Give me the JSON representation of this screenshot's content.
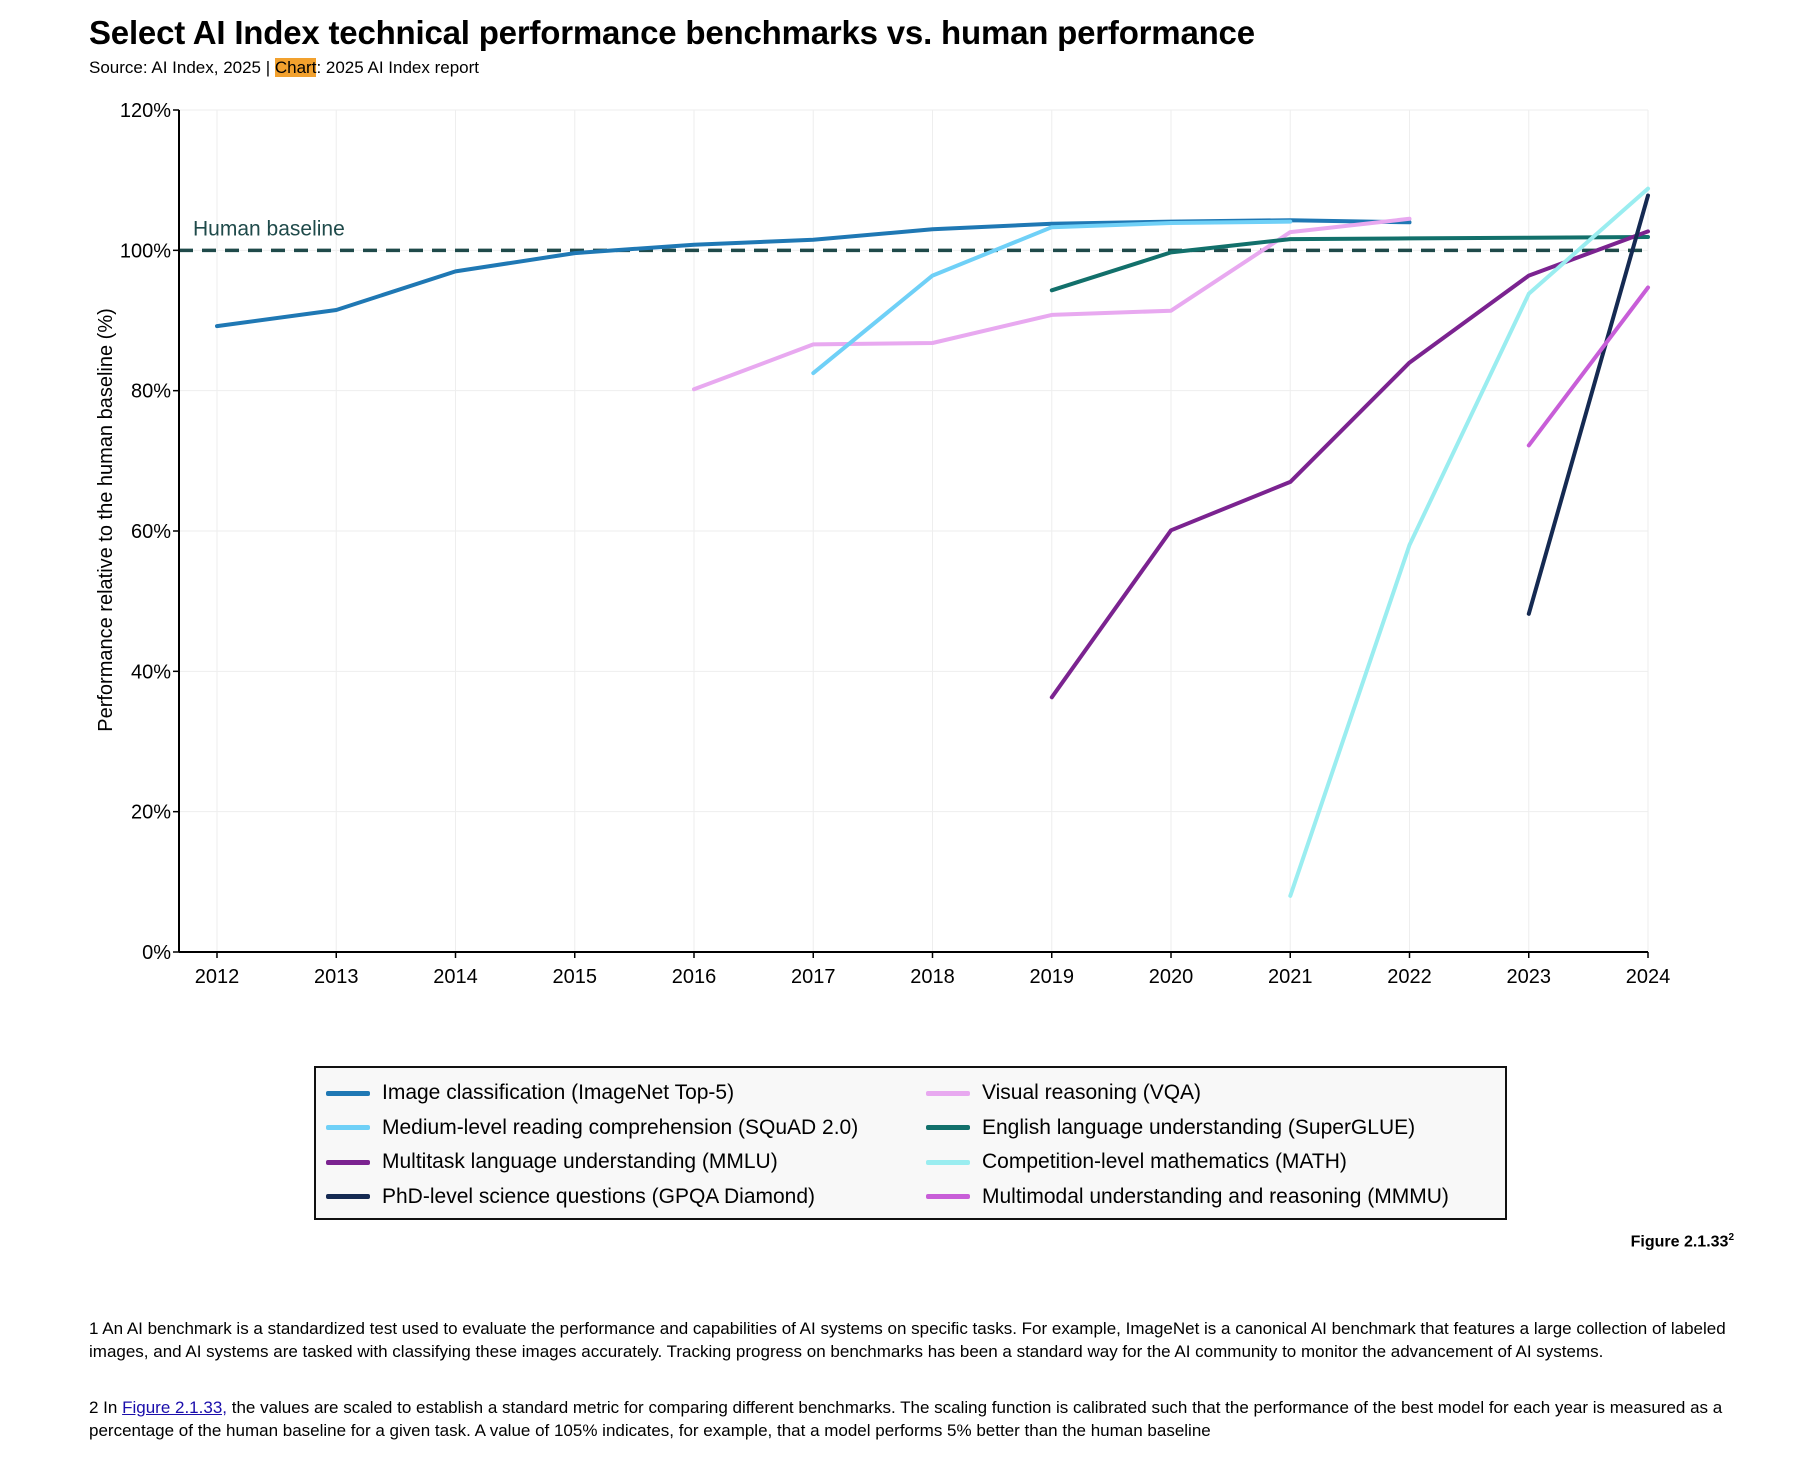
{
  "header": {
    "title": "Select AI Index technical performance benchmarks vs. human performance",
    "source_prefix": "Source: AI Index, 2025 | ",
    "source_highlight": "Chart",
    "source_suffix": ": 2025 AI Index report"
  },
  "chart_data": {
    "type": "line",
    "title": "Select AI Index technical performance benchmarks vs. human performance",
    "xlabel": "",
    "ylabel": "Performance relative to the human baseline (%)",
    "xlim": [
      2012,
      2024
    ],
    "ylim": [
      0,
      120
    ],
    "x_ticks": [
      "2012",
      "2013",
      "2014",
      "2015",
      "2016",
      "2017",
      "2018",
      "2019",
      "2020",
      "2021",
      "2022",
      "2023",
      "2024"
    ],
    "y_ticks": [
      "0%",
      "20%",
      "40%",
      "60%",
      "80%",
      "100%",
      "120%"
    ],
    "grid": true,
    "legend_position": "bottom",
    "baseline": {
      "label": "Human baseline",
      "value": 100,
      "color": "#1f4a4a"
    },
    "series": [
      {
        "name": "Image classification (ImageNet Top-5)",
        "color": "#1f78b4",
        "points": [
          [
            2012,
            89.2
          ],
          [
            2013,
            91.5
          ],
          [
            2014,
            97.0
          ],
          [
            2015,
            99.6
          ],
          [
            2016,
            100.8
          ],
          [
            2017,
            101.5
          ],
          [
            2018,
            103.0
          ],
          [
            2019,
            103.8
          ],
          [
            2020,
            104.1
          ],
          [
            2021,
            104.3
          ],
          [
            2022,
            104.0
          ]
        ]
      },
      {
        "name": "Visual reasoning (VQA)",
        "color": "#e8a9f0",
        "points": [
          [
            2016,
            80.2
          ],
          [
            2017,
            86.6
          ],
          [
            2018,
            86.8
          ],
          [
            2019,
            90.8
          ],
          [
            2020,
            91.4
          ],
          [
            2021,
            102.6
          ],
          [
            2022,
            104.5
          ]
        ]
      },
      {
        "name": "Medium-level reading comprehension (SQuAD 2.0)",
        "color": "#6fd0f7",
        "points": [
          [
            2017,
            82.5
          ],
          [
            2018,
            96.4
          ],
          [
            2019,
            103.3
          ],
          [
            2020,
            103.9
          ],
          [
            2021,
            104.1
          ]
        ]
      },
      {
        "name": "English language understanding (SuperGLUE)",
        "color": "#12706b",
        "points": [
          [
            2019,
            94.3
          ],
          [
            2020,
            99.7
          ],
          [
            2021,
            101.6
          ],
          [
            2022,
            101.7
          ],
          [
            2023,
            101.8
          ],
          [
            2024,
            101.9
          ]
        ]
      },
      {
        "name": "Multitask language understanding (MMLU)",
        "color": "#7b2390",
        "points": [
          [
            2019,
            36.3
          ],
          [
            2020,
            60.1
          ],
          [
            2021,
            67.0
          ],
          [
            2022,
            84.0
          ],
          [
            2023,
            96.4
          ],
          [
            2024,
            102.7
          ]
        ]
      },
      {
        "name": "Competition-level mathematics (MATH)",
        "color": "#9aedf0",
        "points": [
          [
            2021,
            8.0
          ],
          [
            2022,
            58.0
          ],
          [
            2023,
            93.8
          ],
          [
            2024,
            108.8
          ]
        ]
      },
      {
        "name": "PhD-level science questions (GPQA Diamond)",
        "color": "#152a52",
        "points": [
          [
            2023,
            48.2
          ],
          [
            2024,
            107.8
          ]
        ]
      },
      {
        "name": "Multimodal understanding and reasoning (MMMU)",
        "color": "#c85ed8",
        "points": [
          [
            2023,
            72.2
          ],
          [
            2024,
            94.7
          ]
        ]
      }
    ]
  },
  "legend": {
    "left": [
      {
        "label": "Image classification (ImageNet Top-5)",
        "color": "#1f78b4"
      },
      {
        "label": "Medium-level reading comprehension (SQuAD 2.0)",
        "color": "#6fd0f7"
      },
      {
        "label": "Multitask language understanding (MMLU)",
        "color": "#7b2390"
      },
      {
        "label": "PhD-level science questions (GPQA Diamond)",
        "color": "#152a52"
      }
    ],
    "right": [
      {
        "label": "Visual reasoning (VQA)",
        "color": "#e8a9f0"
      },
      {
        "label": "English language understanding (SuperGLUE)",
        "color": "#12706b"
      },
      {
        "label": "Competition-level mathematics (MATH)",
        "color": "#9aedf0"
      },
      {
        "label": "Multimodal understanding and reasoning (MMMU)",
        "color": "#c85ed8"
      }
    ]
  },
  "figure": {
    "label": "Figure 2.1.33",
    "sup": "2"
  },
  "footnotes": {
    "fn1": "1  An AI benchmark is a standardized test used to evaluate the performance and capabilities of AI systems on specific tasks. For example, ImageNet is a canonical AI benchmark that features a large collection of labeled images, and AI systems are tasked with classifying these images accurately. Tracking progress on benchmarks has been a standard way for the AI community to monitor the advancement of AI systems.",
    "fn2_prefix": "2 In ",
    "fn2_link": "Figure 2.1.33,",
    "fn2_suffix": " the values are scaled to establish a standard metric for comparing different benchmarks. The scaling function is calibrated such that the performance of the best model for each year is measured as a percentage of the human baseline for a given task. A value of 105% indicates, for example, that a model performs 5% better than the human baseline"
  }
}
